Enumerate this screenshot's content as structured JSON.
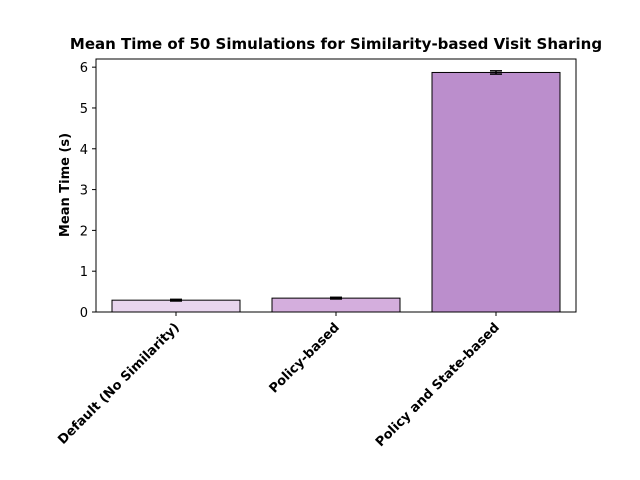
{
  "chart_data": {
    "type": "bar",
    "title": "Mean Time of 50 Simulations for Similarity-based Visit Sharing",
    "xlabel": "",
    "ylabel": "Mean Time (s)",
    "categories": [
      "Default (No Similarity)",
      "Policy-based",
      "Policy and State-based"
    ],
    "values": [
      0.29,
      0.34,
      5.87
    ],
    "errors": [
      0.02,
      0.02,
      0.04
    ],
    "colors": [
      "#e8d5ee",
      "#d4aedd",
      "#bb8ecc"
    ],
    "ylim": [
      0,
      6.2
    ],
    "yticks": [
      0,
      1,
      2,
      3,
      4,
      5,
      6
    ],
    "grid": false
  }
}
